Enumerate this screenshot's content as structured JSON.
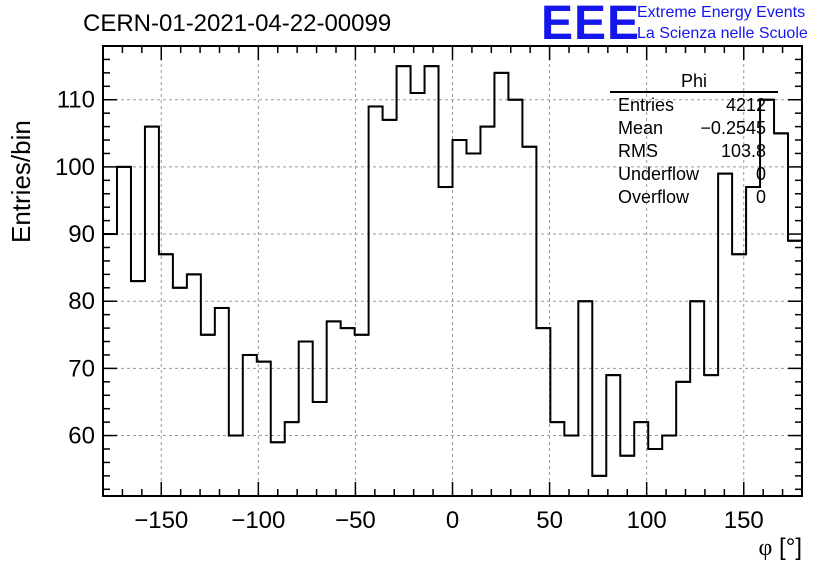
{
  "title": "CERN-01-2021-04-22-00099",
  "logo": {
    "mark": "EEE",
    "line1": "Extreme Energy Events",
    "line2": "La Scienza nelle Scuole",
    "color": "#1515ee"
  },
  "stats": {
    "title": "Phi",
    "rows": [
      {
        "label": "Entries",
        "value": "4212"
      },
      {
        "label": "Mean",
        "value": "−0.2545"
      },
      {
        "label": "RMS",
        "value": "103.8"
      },
      {
        "label": "Underflow",
        "value": "0"
      },
      {
        "label": "Overflow",
        "value": "0"
      }
    ]
  },
  "chart_data": {
    "type": "histogram",
    "xlabel_symbol": "φ",
    "xlabel_unit": " [°]",
    "ylabel": "Entries/bin",
    "xlim": [
      -180,
      180
    ],
    "ylim": [
      51,
      118
    ],
    "bin_width": 7.2,
    "grid": true,
    "xticks": [
      -150,
      -100,
      -50,
      0,
      50,
      100,
      150
    ],
    "xtick_labels": [
      "−150",
      "−100",
      "−50",
      "0",
      "50",
      "100",
      "150"
    ],
    "yticks": [
      60,
      70,
      80,
      90,
      100,
      110
    ],
    "ytick_labels": [
      "60",
      "70",
      "80",
      "90",
      "100",
      "110"
    ],
    "values": [
      90,
      100,
      83,
      106,
      87,
      82,
      84,
      75,
      79,
      60,
      72,
      71,
      59,
      62,
      74,
      65,
      77,
      76,
      75,
      109,
      107,
      115,
      111,
      115,
      97,
      104,
      102,
      106,
      114,
      110,
      103,
      76,
      62,
      60,
      80,
      54,
      69,
      57,
      62,
      58,
      60,
      68,
      80,
      69,
      99,
      87,
      97,
      110,
      105,
      89
    ]
  }
}
